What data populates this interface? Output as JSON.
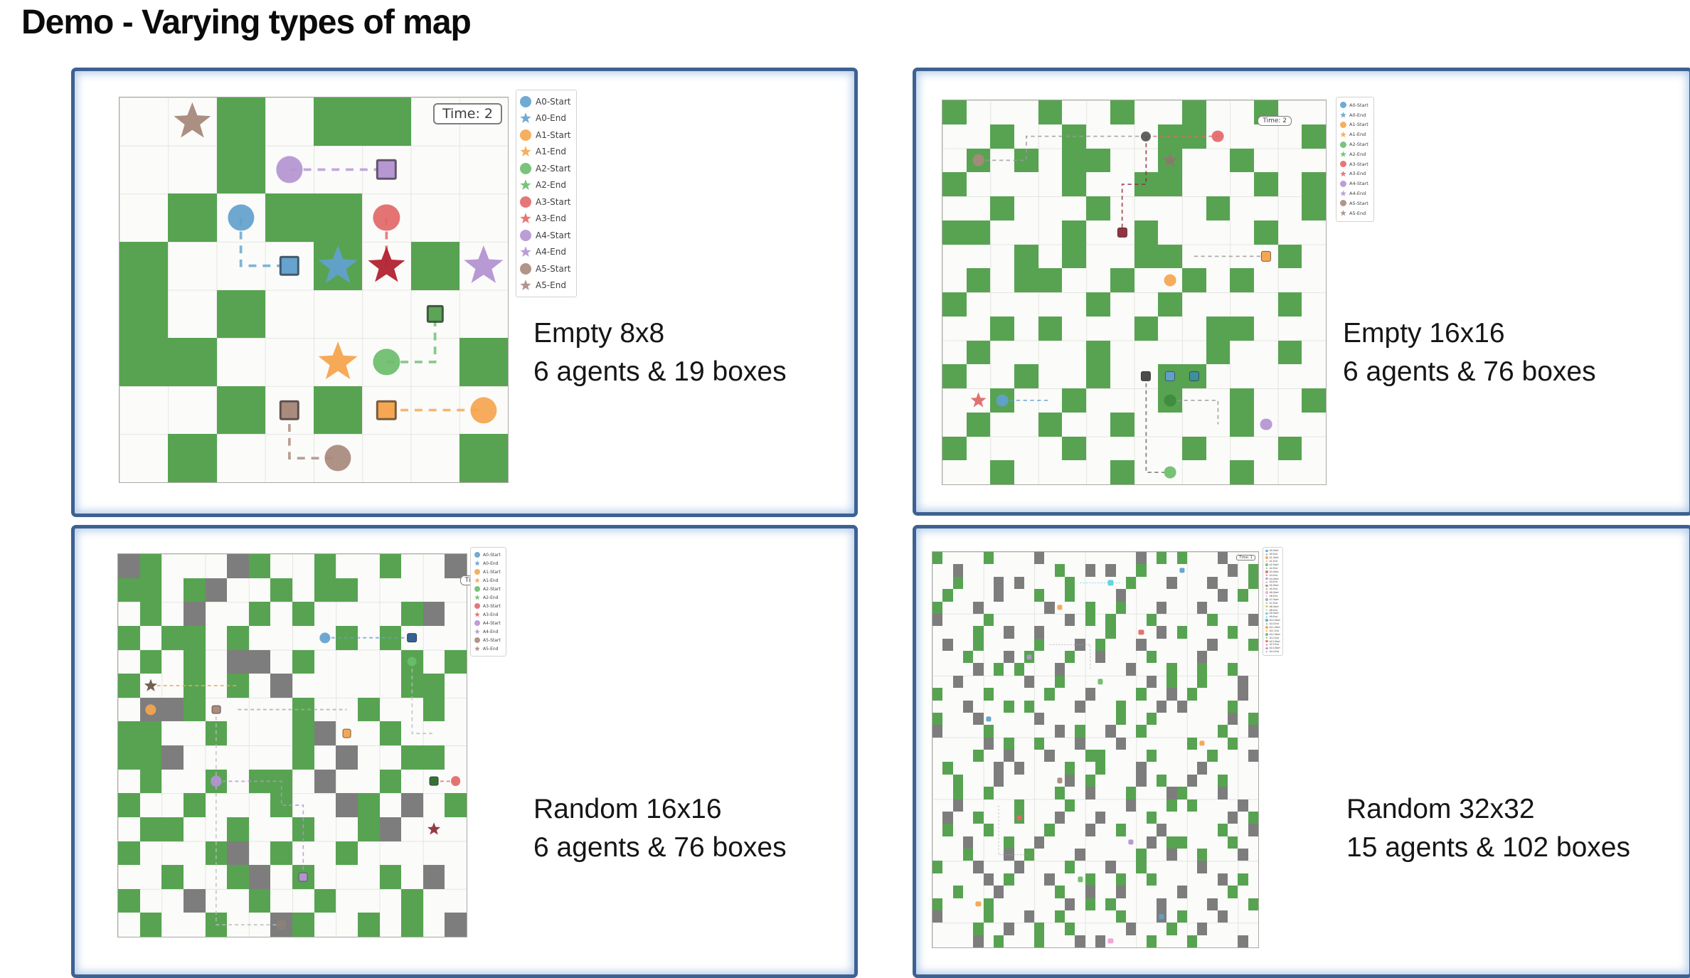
{
  "title": "Demo - Varying types of map",
  "palette": {
    "agent_colors": [
      "#62a1cd",
      "#f5a54e",
      "#6bbd6b",
      "#e26868",
      "#b494d1",
      "#a8897c",
      "#eba3d5",
      "#a5a5a5",
      "#d0d15e",
      "#5cd2de"
    ],
    "box_green": "#57a351",
    "obstacle_gray": "#7d7d7d",
    "panel_border": "#3d6191",
    "grid_line": "#e4e4e0"
  },
  "legend": {
    "agent_prefix": "A",
    "start_suffix": "-Start",
    "end_suffix": "-End"
  },
  "panels": [
    {
      "name": "empty-8x8",
      "caption": [
        "Empty 8x8",
        "6 agents & 19 boxes"
      ],
      "time_label": "Time: 2",
      "rows": 8,
      "cols": 8,
      "agents": 6,
      "grid": [
        "..g.gg..",
        "..g.....",
        ".g.gg...",
        "g...g.g.",
        "g.g.....",
        "gg.....g",
        "..g.g...",
        ".g.....g"
      ],
      "markers": [
        {
          "r": 0,
          "c": 1,
          "shape": "star",
          "color": 5,
          "s": 0.8
        },
        {
          "r": 1,
          "c": 3,
          "shape": "circle",
          "color": 4,
          "s": 0.55
        },
        {
          "r": 1,
          "c": 5,
          "shape": "square",
          "color": 4,
          "s": 0.42
        },
        {
          "r": 2,
          "c": 2,
          "shape": "circle",
          "color": 0,
          "s": 0.55
        },
        {
          "r": 2,
          "c": 5,
          "shape": "circle",
          "color": 3,
          "s": 0.55
        },
        {
          "r": 3,
          "c": 3,
          "shape": "square",
          "color": 0,
          "s": 0.42
        },
        {
          "r": 3,
          "c": 4,
          "shape": "star",
          "color": 0,
          "s": 0.85
        },
        {
          "r": 3,
          "c": 5,
          "shape": "star",
          "color": "#b22230",
          "s": 0.8
        },
        {
          "r": 3,
          "c": 7,
          "shape": "star",
          "color": 4,
          "s": 0.85
        },
        {
          "r": 4,
          "c": 6,
          "shape": "square",
          "color": "#57a351",
          "s": 0.36
        },
        {
          "r": 5,
          "c": 4,
          "shape": "star",
          "color": 1,
          "s": 0.85
        },
        {
          "r": 5,
          "c": 5,
          "shape": "circle",
          "color": 2,
          "s": 0.55
        },
        {
          "r": 6,
          "c": 3,
          "shape": "square",
          "color": 5,
          "s": 0.42
        },
        {
          "r": 6,
          "c": 5,
          "shape": "square",
          "color": 1,
          "s": 0.42
        },
        {
          "r": 6,
          "c": 7,
          "shape": "circle",
          "color": 1,
          "s": 0.55
        },
        {
          "r": 7,
          "c": 4,
          "shape": "circle",
          "color": 5,
          "s": 0.55
        }
      ],
      "paths": [
        {
          "color": 4,
          "pts": [
            [
              1,
              3
            ],
            [
              1,
              5
            ]
          ]
        },
        {
          "color": 0,
          "pts": [
            [
              2,
              2
            ],
            [
              3,
              2
            ],
            [
              3,
              3
            ]
          ]
        },
        {
          "color": 3,
          "pts": [
            [
              2,
              5
            ],
            [
              3,
              5
            ]
          ]
        },
        {
          "color": 2,
          "pts": [
            [
              5,
              5
            ],
            [
              5,
              6
            ],
            [
              4,
              6
            ]
          ]
        },
        {
          "color": 1,
          "pts": [
            [
              6,
              5
            ],
            [
              6,
              7
            ]
          ]
        },
        {
          "color": 5,
          "pts": [
            [
              6,
              3
            ],
            [
              7,
              3
            ],
            [
              7,
              4
            ]
          ]
        }
      ]
    },
    {
      "name": "empty-16x16",
      "caption": [
        "Empty 16x16",
        "6 agents & 76 boxes"
      ],
      "time_label": "Time: 2",
      "rows": 16,
      "cols": 16,
      "agents": 6,
      "grid": [
        "g...g..g..g..g..",
        "..g..g...gg....g",
        ".g.g.gg..g..g...",
        "g....g..gg...g.g",
        "..g...g....g...g",
        "gg...g..g....g..",
        "...g.g..gg....g.",
        ".g.gg..g..g.g...",
        "g.....g..g....g.",
        "..g.g...g..gg...",
        ".g....g....g..g.",
        "g..g..g..gg.....",
        "..g..g...g..g..g",
        ".g..g..g....g...",
        "g....g....g...g.",
        "..g....g....g..."
      ],
      "markers": [
        {
          "r": 1,
          "c": 8,
          "shape": "circle",
          "color": "#555555",
          "s": 0.42
        },
        {
          "r": 1,
          "c": 11,
          "shape": "circle",
          "color": 3,
          "s": 0.5
        },
        {
          "r": 2,
          "c": 1,
          "shape": "circle",
          "color": 5,
          "s": 0.5
        },
        {
          "r": 2,
          "c": 9,
          "shape": "star",
          "color": "#8a7a6e",
          "s": 0.65
        },
        {
          "r": 5,
          "c": 7,
          "shape": "square",
          "color": "#8f2f3a",
          "s": 0.42
        },
        {
          "r": 6,
          "c": 13,
          "shape": "square",
          "color": 1,
          "s": 0.42
        },
        {
          "r": 7,
          "c": 9,
          "shape": "circle",
          "color": 1,
          "s": 0.5
        },
        {
          "r": 11,
          "c": 8,
          "shape": "square",
          "color": "#474747",
          "s": 0.42
        },
        {
          "r": 11,
          "c": 9,
          "shape": "square",
          "color": 0,
          "s": 0.42
        },
        {
          "r": 11,
          "c": 10,
          "shape": "square",
          "color": "#3f8fa0",
          "s": 0.42
        },
        {
          "r": 12,
          "c": 1,
          "shape": "star",
          "color": 3,
          "s": 0.68
        },
        {
          "r": 12,
          "c": 2,
          "shape": "circle",
          "color": 0,
          "s": 0.5
        },
        {
          "r": 12,
          "c": 9,
          "shape": "circle",
          "color": "#3d8b3d",
          "s": 0.5
        },
        {
          "r": 13,
          "c": 13,
          "shape": "circle",
          "color": 4,
          "s": 0.5
        },
        {
          "r": 15,
          "c": 9,
          "shape": "circle",
          "color": 2,
          "s": 0.5
        }
      ],
      "paths": [
        {
          "color": "#9a9a9a",
          "pts": [
            [
              2,
              1
            ],
            [
              2,
              3
            ],
            [
              1,
              3
            ],
            [
              1,
              8
            ]
          ]
        },
        {
          "color": 3,
          "pts": [
            [
              1,
              8
            ],
            [
              1,
              11
            ]
          ]
        },
        {
          "color": "#8f2f3a",
          "pts": [
            [
              1,
              8
            ],
            [
              3,
              8
            ],
            [
              3,
              7
            ],
            [
              5,
              7
            ]
          ]
        },
        {
          "color": "#9a9a9a",
          "pts": [
            [
              6,
              10
            ],
            [
              6,
              13
            ]
          ]
        },
        {
          "color": 0,
          "pts": [
            [
              12,
              2
            ],
            [
              12,
              4
            ]
          ]
        },
        {
          "color": "#6a6a6a",
          "pts": [
            [
              11,
              8
            ],
            [
              15,
              8
            ],
            [
              15,
              9
            ]
          ]
        },
        {
          "color": "#9a9a9a",
          "pts": [
            [
              12,
              9
            ],
            [
              12,
              11
            ],
            [
              13,
              11
            ]
          ]
        }
      ]
    },
    {
      "name": "random-16x16",
      "caption": [
        "Random 16x16",
        "6 agents & 76 boxes"
      ],
      "time_label": "Time: 10",
      "rows": 16,
      "cols": 16,
      "agents": 6,
      "grid": [
        "xg...xg..g..g..x",
        "gg.gx..g.gg.....",
        ".g.x..g.g....gx.",
        "g.gg.g....g.g...",
        ".g.g.xx.g....g.g",
        "g..g.g.x.....gg.",
        ".xxg....g..g..g.",
        "gg..g...gx..g...",
        "ggx.....g.x..gg.",
        ".g..g.gg.x..g...",
        "g..g...g..xg.x.g",
        ".gg..g..g..gx...",
        "g...gx.g..g.....",
        "..g..gx.g...g.x.",
        "g..x..g..g...g..",
        ".g..g..xg..g.g.x"
      ],
      "markers": [
        {
          "r": 3,
          "c": 9,
          "shape": "circle",
          "color": 0,
          "s": 0.5
        },
        {
          "r": 3,
          "c": 13,
          "shape": "square",
          "color": "#2f5f8f",
          "s": 0.45
        },
        {
          "r": 4,
          "c": 13,
          "shape": "circle",
          "color": 2,
          "s": 0.42
        },
        {
          "r": 5,
          "c": 1,
          "shape": "star",
          "color": "#6a5a4a",
          "s": 0.62
        },
        {
          "r": 6,
          "c": 1,
          "shape": "circle",
          "color": 1,
          "s": 0.5
        },
        {
          "r": 6,
          "c": 4,
          "shape": "square",
          "color": 5,
          "s": 0.42
        },
        {
          "r": 7,
          "c": 10,
          "shape": "square",
          "color": 1,
          "s": 0.42
        },
        {
          "r": 9,
          "c": 4,
          "shape": "circle",
          "color": 4,
          "s": 0.5
        },
        {
          "r": 9,
          "c": 14,
          "shape": "square",
          "color": "#2f6f2f",
          "s": 0.42
        },
        {
          "r": 9,
          "c": 15,
          "shape": "circle",
          "color": 3,
          "s": 0.45
        },
        {
          "r": 11,
          "c": 14,
          "shape": "star",
          "color": "#8f2f3a",
          "s": 0.62
        },
        {
          "r": 13,
          "c": 8,
          "shape": "square",
          "color": 4,
          "s": 0.42
        },
        {
          "r": 15,
          "c": 7,
          "shape": "circle",
          "color": "#8a8078",
          "s": 0.48
        }
      ],
      "paths": [
        {
          "color": 0,
          "pts": [
            [
              3,
              9
            ],
            [
              3,
              13
            ]
          ]
        },
        {
          "color": 1,
          "pts": [
            [
              5,
              1
            ],
            [
              5,
              5
            ]
          ]
        },
        {
          "color": "#aaaaaa",
          "pts": [
            [
              6,
              5
            ],
            [
              6,
              10
            ]
          ]
        },
        {
          "color": 4,
          "pts": [
            [
              9,
              4
            ],
            [
              9,
              7
            ],
            [
              10,
              7
            ],
            [
              10,
              8
            ],
            [
              13,
              8
            ]
          ]
        },
        {
          "color": 3,
          "pts": [
            [
              9,
              14
            ],
            [
              9,
              15
            ]
          ]
        },
        {
          "color": "#bbbbbb",
          "pts": [
            [
              6,
              4
            ],
            [
              15,
              4
            ],
            [
              15,
              7
            ]
          ]
        },
        {
          "color": "#bbbbbb",
          "pts": [
            [
              4,
              13
            ],
            [
              7,
              13
            ],
            [
              7,
              14
            ]
          ]
        }
      ]
    },
    {
      "name": "random-32x32",
      "caption": [
        "Random 32x32",
        "15 agents & 102 boxes"
      ],
      "time_label": "Time: 1",
      "rows": 32,
      "cols": 32,
      "agents": 15,
      "grid": [
        "g....g....x.........x.g.g...x...",
        "..x.........g..x.x..g........x.g",
        "..g...x.x....g.....g...x...x...g",
        ".g....x...g..g....x.........x.g.",
        "g...x......x...g..g...x...x.....",
        "x....g.......x.g.g...g.....g...x",
        "....g..x..x......g....x.g....g..",
        ".x..g.....g...x.g...x......x...g",
        "...g...x.g...g..x....g....x.....",
        "....x.g.g...x......x...g..g..g..",
        "..x......x..g........x.g..g...x.",
        "g....g.....g...x....g..x.g....x.",
        "...x...g.g....x...g...x.x....g..",
        "g...x.....x.......g..g.......x.g",
        "x....g......x.g..x..g.......g..x",
        ".....x.g..g...x...x......g...g..",
        "....g..x...x...gg....g.....g...x",
        ".g....x.x....g..g...x.....x.....",
        "..g...x......x.g....x.g..x..g...",
        "..g..g......g..x...g...xg...x...",
        "..x.....g....g.....x...g.g....x.",
        ".x..g...g...x...x....g.......x.g",
        ".g...g.....g...x..g...x.....g..x",
        "...x...g..x..........x.gg....g..",
        "...g...x.g....x.....g..x..g...x.",
        "g...x...x....g...x..g.....x.....",
        ".....x.g...x...g..g..g......x.g.",
        "..g...x.....g..x..x.....x....g..",
        "g....g.......x.g.g....x....x...g",
        "x....g...x..g.....g...x.g...x...",
        "....g..x..g..g.....x...g..x.....",
        "....x.g...g...x.x....g...g....x."
      ],
      "markers": [
        {
          "r": 1,
          "c": 24,
          "shape": "dot",
          "color": 0
        },
        {
          "r": 2,
          "c": 17,
          "shape": "dot",
          "color": 9
        },
        {
          "r": 4,
          "c": 12,
          "shape": "dot",
          "color": 1
        },
        {
          "r": 6,
          "c": 20,
          "shape": "dot",
          "color": 3
        },
        {
          "r": 8,
          "c": 9,
          "shape": "dot",
          "color": 4
        },
        {
          "r": 10,
          "c": 16,
          "shape": "dot",
          "color": 2
        },
        {
          "r": 13,
          "c": 5,
          "shape": "dot",
          "color": 0
        },
        {
          "r": 15,
          "c": 26,
          "shape": "dot",
          "color": 1
        },
        {
          "r": 18,
          "c": 12,
          "shape": "dot",
          "color": 5
        },
        {
          "r": 21,
          "c": 8,
          "shape": "dot",
          "color": 3
        },
        {
          "r": 23,
          "c": 19,
          "shape": "dot",
          "color": 4
        },
        {
          "r": 26,
          "c": 14,
          "shape": "dot",
          "color": 2
        },
        {
          "r": 28,
          "c": 4,
          "shape": "dot",
          "color": 1
        },
        {
          "r": 29,
          "c": 22,
          "shape": "dot",
          "color": 0
        },
        {
          "r": 31,
          "c": 17,
          "shape": "dot",
          "color": 6
        }
      ],
      "paths": [
        {
          "color": 9,
          "pts": [
            [
              2,
              14
            ],
            [
              2,
              18
            ]
          ]
        },
        {
          "color": "#aaaaaa",
          "pts": [
            [
              7,
              11
            ],
            [
              7,
              15
            ],
            [
              9,
              15
            ]
          ]
        },
        {
          "color": "#aaaaaa",
          "pts": [
            [
              20,
              6
            ],
            [
              24,
              6
            ],
            [
              24,
              9
            ]
          ]
        }
      ]
    }
  ]
}
